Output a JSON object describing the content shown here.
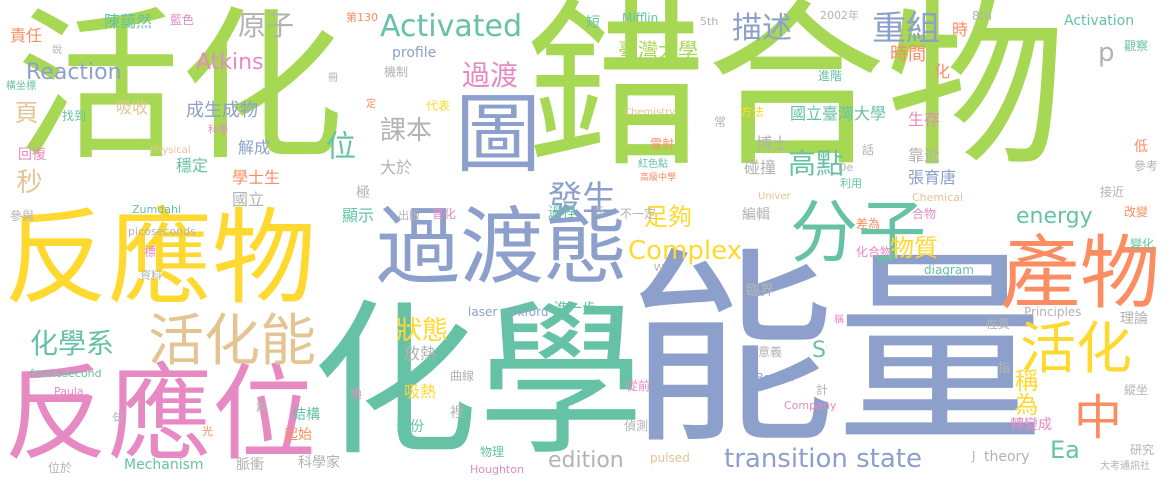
{
  "palette": {
    "green": "#a6d854",
    "blue": "#8da0cb",
    "teal": "#66c2a5",
    "orange": "#fc8d62",
    "pink": "#e78ac3",
    "yellow": "#ffd92f",
    "tan": "#e5c494",
    "gray": "#b3b3b3"
  },
  "words": {
    "w_huohua": "活化",
    "w_cuohe": "錯合物",
    "w_nengliang": "能量",
    "w_huaxue": "化學",
    "w_fanyingwu": "反應物",
    "w_fanyingwei": "反應位",
    "w_guodutai": "過渡態",
    "w_fenzi": "分子",
    "w_chanwu": "產物",
    "w_huohua2": "活化",
    "w_zhong": "中",
    "w_huohuaneng": "活化能",
    "w_tu": "圖",
    "w_activated": "Activated",
    "w_complex": "Complex",
    "w_transition": "transition state",
    "w_energy": "energy",
    "w_edition": "edition",
    "w_reaction": "Reaction",
    "w_atkins": "Atkins",
    "w_huaxuexi": "化學系",
    "w_zhuangtai": "狀態",
    "w_yuanzi": "原子",
    "w_miaoshu": "描述",
    "w_chongzu": "重組",
    "w_fasheng": "發生",
    "w_zugou": "足夠",
    "w_gaodian": "高點",
    "w_guodu": "過渡",
    "w_keben": "課本",
    "w_wei": "位",
    "w_ea": "Ea",
    "w_chengwei": "稱為",
    "w_wuzhi": "物質",
    "w_taiwan": "臺灣大學",
    "w_p": "p",
    "w_s": "S",
    "w_ye": "頁",
    "w_miao": "秒",
    "w_zeren": "責任",
    "w_chenhui": "陳藹然",
    "w_lanse": "藍色",
    "w_di130": "第130",
    "w_duan": "短",
    "w_mifflin": "Mifflin",
    "w_5th": "5th",
    "w_2002": "2002年",
    "w_8th": "8th",
    "w_shi": "時",
    "w_activation": "Activation",
    "w_guancha": "觀察",
    "w_shijian": "時間",
    "w_hua": "化",
    "w_jinjie": "進階",
    "w_profile": "profile",
    "w_jizhi": "機制",
    "w_xishou": "吸收",
    "w_chengsheng": "成生成物",
    "w_zhaodao": "找到",
    "w_daibiao": "代表",
    "w_chemistry": "Chemistry",
    "w_fangfa": "方法",
    "w_chang": "常",
    "w_guoli_tw": "國立臺灣大學",
    "w_shengcun": "生存",
    "w_huifu": "回復",
    "w_jiecheng": "解成",
    "w_wending": "穩定",
    "w_physical": "Physical",
    "w_leishe": "雷射",
    "w_boshi": "博士",
    "w_pengzhuang": "碰撞",
    "w_hua2": "話",
    "w_kaojin": "靠近",
    "w_di": "低",
    "w_cankao": "參考",
    "w_xueshisheng": "學士生",
    "w_dayu": "大於",
    "w_hongsedian": "紅色點",
    "w_gaoji": "高級中學",
    "w_de": "De",
    "w_liyong": "利用",
    "w_zhangyutang": "張育唐",
    "w_jiejin": "接近",
    "w_guoli": "國立",
    "w_xianshi": "顯示",
    "w_guocheng": "過程",
    "w_buyiding": "不一定",
    "w_univer": "Univer",
    "w_chemical": "Chemical",
    "w_huowu": "合物",
    "w_gaibian": "改變",
    "w_zumdahl": "Zumdahl",
    "w_chuban": "出版",
    "w_puhua": "普化",
    "w_bianji": "編輯",
    "w_chayi": "差為",
    "w_bianhua": "變化",
    "w_picoseconds": "picoseconds",
    "w_biao": "標",
    "w_w": "W",
    "w_huahewu": "化合物",
    "w_ziliao": "資料",
    "w_diagram": "diagram",
    "w_linjie": "臨界",
    "w_jinyibu": "進一步",
    "w_laser": "laser",
    "w_oxford": "Oxford",
    "w_principles": "Principles",
    "w_xingzhi": "性質",
    "w_lilun": "理論",
    "w_femtosecond": "femtosecond",
    "w_fangre": "放熱",
    "w_yiyi": "意義",
    "w_quxian": "曲線",
    "w_congqian": "從前",
    "w_boston": "Boston",
    "w_zhi": "指",
    "w_paula": "Paula",
    "w_xire": "吸熱",
    "w_jisuan": "計",
    "w_zongzuo": "縱坐",
    "w_huan": "換",
    "w_company": "Company",
    "w_ju": "句",
    "w_jiegou": "結構",
    "w_qishi": "起始",
    "w_pian": "篇",
    "w_bufen": "部份",
    "w_li": "裡",
    "w_zhuanbian": "轉變成",
    "w_zhence": "偵測",
    "w_guang": "光",
    "w_mechanism": "Mechanism",
    "w_maichong": "脈衝",
    "w_kexuejia": "科學家",
    "w_wuli": "物理",
    "w_houghton": "Houghton",
    "w_pulsed": "pulsed",
    "w_theory": "theory",
    "w_yanjiu": "研究",
    "w_weiyu": "位於",
    "w_dakao": "大考通訊社",
    "w_shuo": "說",
    "w_hengzuo": "橫坐標",
    "w_ce": "冊",
    "w_ding": "定",
    "w_kexue": "科學",
    "w_cheng": "稱",
    "w_canyu": "參與",
    "w_ji": "極",
    "w_fan": "泛",
    "w_j": "J"
  }
}
